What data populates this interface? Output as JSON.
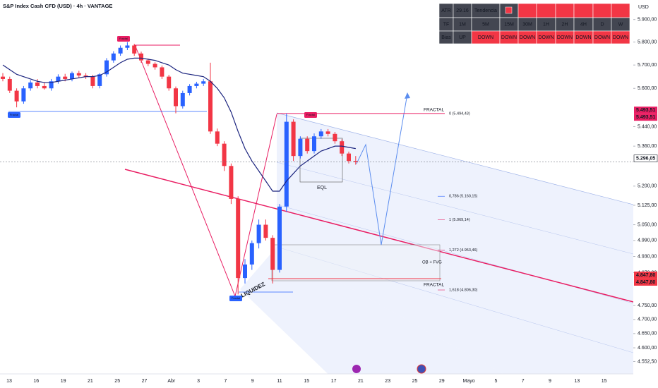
{
  "chart_data": {
    "type": "candlestick",
    "title": "S&P Index Cash CFD (USD) · 4h · VANTAGE",
    "currency": "USD",
    "log_scale": true,
    "ylim": [
      4510,
      5988
    ],
    "yticks": [
      {
        "value": 5900,
        "label": "5.900,00"
      },
      {
        "value": 5800,
        "label": "5.800,00"
      },
      {
        "value": 5700,
        "label": "5.700,00"
      },
      {
        "value": 5600,
        "label": "5.600,00"
      },
      {
        "value": 5440,
        "label": "5.440,00"
      },
      {
        "value": 5360,
        "label": "5.360,00"
      },
      {
        "value": 5200,
        "label": "5.200,00"
      },
      {
        "value": 5125,
        "label": "5.125,00"
      },
      {
        "value": 5050,
        "label": "5.050,00"
      },
      {
        "value": 4990,
        "label": "4.990,00"
      },
      {
        "value": 4930,
        "label": "4.930,00"
      },
      {
        "value": 4870,
        "label": "4.870,00"
      },
      {
        "value": 4750,
        "label": "4.750,00"
      },
      {
        "value": 4700,
        "label": "4.700,00"
      },
      {
        "value": 4650,
        "label": "4.650,00"
      },
      {
        "value": 4600,
        "label": "4.600,00"
      },
      {
        "value": 4552.5,
        "label": "4.552,50"
      }
    ],
    "x_axis_labels": [
      "13",
      "16",
      "19",
      "21",
      "25",
      "27",
      "Abr",
      "3",
      "7",
      "9",
      "11",
      "15",
      "17",
      "21",
      "23",
      "25",
      "29",
      "Mayo",
      "5",
      "7",
      "9",
      "13",
      "15"
    ],
    "up_color": "#2962ff",
    "down_color": "#f23645",
    "open": [
      5650,
      5640,
      5590,
      5545,
      5600,
      5625,
      5610,
      5600,
      5630,
      5650,
      5640,
      5665,
      5655,
      5650,
      5610,
      5660,
      5720,
      5750,
      5775,
      5785,
      5750,
      5720,
      5705,
      5690,
      5650,
      5600,
      5525,
      5580,
      5610,
      5620,
      5630,
      5420,
      5370,
      5280,
      5150,
      4850,
      4900,
      4980,
      5050,
      5000,
      4880,
      5120,
      5460,
      5320,
      5390,
      5340,
      5400,
      5420,
      5410,
      5380,
      5330,
      5300
    ],
    "high": [
      5665,
      5650,
      5600,
      5610,
      5635,
      5640,
      5625,
      5640,
      5660,
      5662,
      5672,
      5675,
      5665,
      5658,
      5665,
      5730,
      5760,
      5785,
      5800,
      5792,
      5758,
      5728,
      5712,
      5698,
      5658,
      5608,
      5590,
      5618,
      5628,
      5640,
      5710,
      5432,
      5380,
      5290,
      5160,
      4920,
      4990,
      5070,
      5070,
      5010,
      5130,
      5494.43,
      5470,
      5400,
      5400,
      5412,
      5430,
      5430,
      5418,
      5388,
      5338,
      5320
    ],
    "low": [
      5630,
      5580,
      5520,
      5535,
      5590,
      5600,
      5595,
      5590,
      5620,
      5630,
      5630,
      5645,
      5640,
      5600,
      5600,
      5650,
      5710,
      5740,
      5765,
      5740,
      5710,
      5695,
      5680,
      5640,
      5590,
      5495,
      5515,
      5570,
      5600,
      5610,
      5410,
      5360,
      5260,
      5130,
      4790,
      4830,
      4880,
      4960,
      4990,
      4830,
      4870,
      5100,
      5300,
      5310,
      5330,
      5330,
      5390,
      5400,
      5370,
      5320,
      5290,
      5285
    ],
    "close": [
      5640,
      5590,
      5545,
      5600,
      5625,
      5610,
      5600,
      5630,
      5650,
      5640,
      5665,
      5655,
      5650,
      5610,
      5660,
      5720,
      5750,
      5775,
      5785,
      5750,
      5720,
      5705,
      5690,
      5650,
      5600,
      5525,
      5580,
      5610,
      5620,
      5630,
      5420,
      5370,
      5280,
      5150,
      4850,
      4900,
      4980,
      5050,
      5000,
      4880,
      5120,
      5460,
      5320,
      5390,
      5340,
      5400,
      5420,
      5410,
      5380,
      5330,
      5300,
      5296.05
    ],
    "moving_average": {
      "color": "#1a237e",
      "values": [
        5700,
        5680,
        5660,
        5650,
        5640,
        5630,
        5625,
        5625,
        5630,
        5635,
        5640,
        5645,
        5650,
        5650,
        5655,
        5670,
        5690,
        5710,
        5725,
        5730,
        5730,
        5725,
        5720,
        5710,
        5700,
        5680,
        5665,
        5660,
        5655,
        5650,
        5630,
        5600,
        5560,
        5500,
        5420,
        5350,
        5300,
        5260,
        5220,
        5180,
        5180,
        5220,
        5250,
        5280,
        5300,
        5320,
        5340,
        5350,
        5360,
        5360,
        5355,
        5350
      ]
    },
    "fib_levels": [
      {
        "value": 5494.43,
        "label": "0 (5.494,43)"
      },
      {
        "value": 5160.15,
        "label": "0,786 (5.160,15)"
      },
      {
        "value": 5069.14,
        "label": "1 (5.069,14)"
      },
      {
        "value": 4953.46,
        "label": "1,272 (4.953,46)"
      },
      {
        "value": 4806.3,
        "label": "1,618 (4.806,30)"
      }
    ],
    "price_badges": [
      {
        "value": 5493.51,
        "label": "5.493,51",
        "color": "#e91e63"
      },
      {
        "value": 5493.51,
        "label": "5.493,51",
        "color": "#e91e63"
      },
      {
        "value": 5296.05,
        "label": "5.296,05",
        "color": "#ffffff"
      },
      {
        "value": 4847.8,
        "label": "4.847,80",
        "color": "#f23645"
      },
      {
        "value": 4847.8,
        "label": "4.847,80",
        "color": "#f23645"
      }
    ],
    "annotations": {
      "fractal_top": "FRACTAL",
      "fractal_bottom": "FRACTAL",
      "eql": "EQL",
      "ob_fvg": "OB + FVG",
      "liquidity": "LIQUIDEZ",
      "fractal_badges": [
        "Fractal",
        "Fractal",
        "Fractal",
        "Fractal"
      ]
    },
    "indicator_table": {
      "rows": [
        [
          "ATR",
          "29.16",
          "Tendencia"
        ],
        [
          "TF",
          "1M",
          "5M",
          "15M",
          "30M",
          "1H",
          "2H",
          "4H",
          "D",
          "W"
        ],
        [
          "Bias",
          "UP",
          "DOWN",
          "DOWN",
          "DOWN",
          "DOWN",
          "DOWN",
          "DOWN",
          "DOWN",
          "DOWN"
        ]
      ]
    }
  }
}
